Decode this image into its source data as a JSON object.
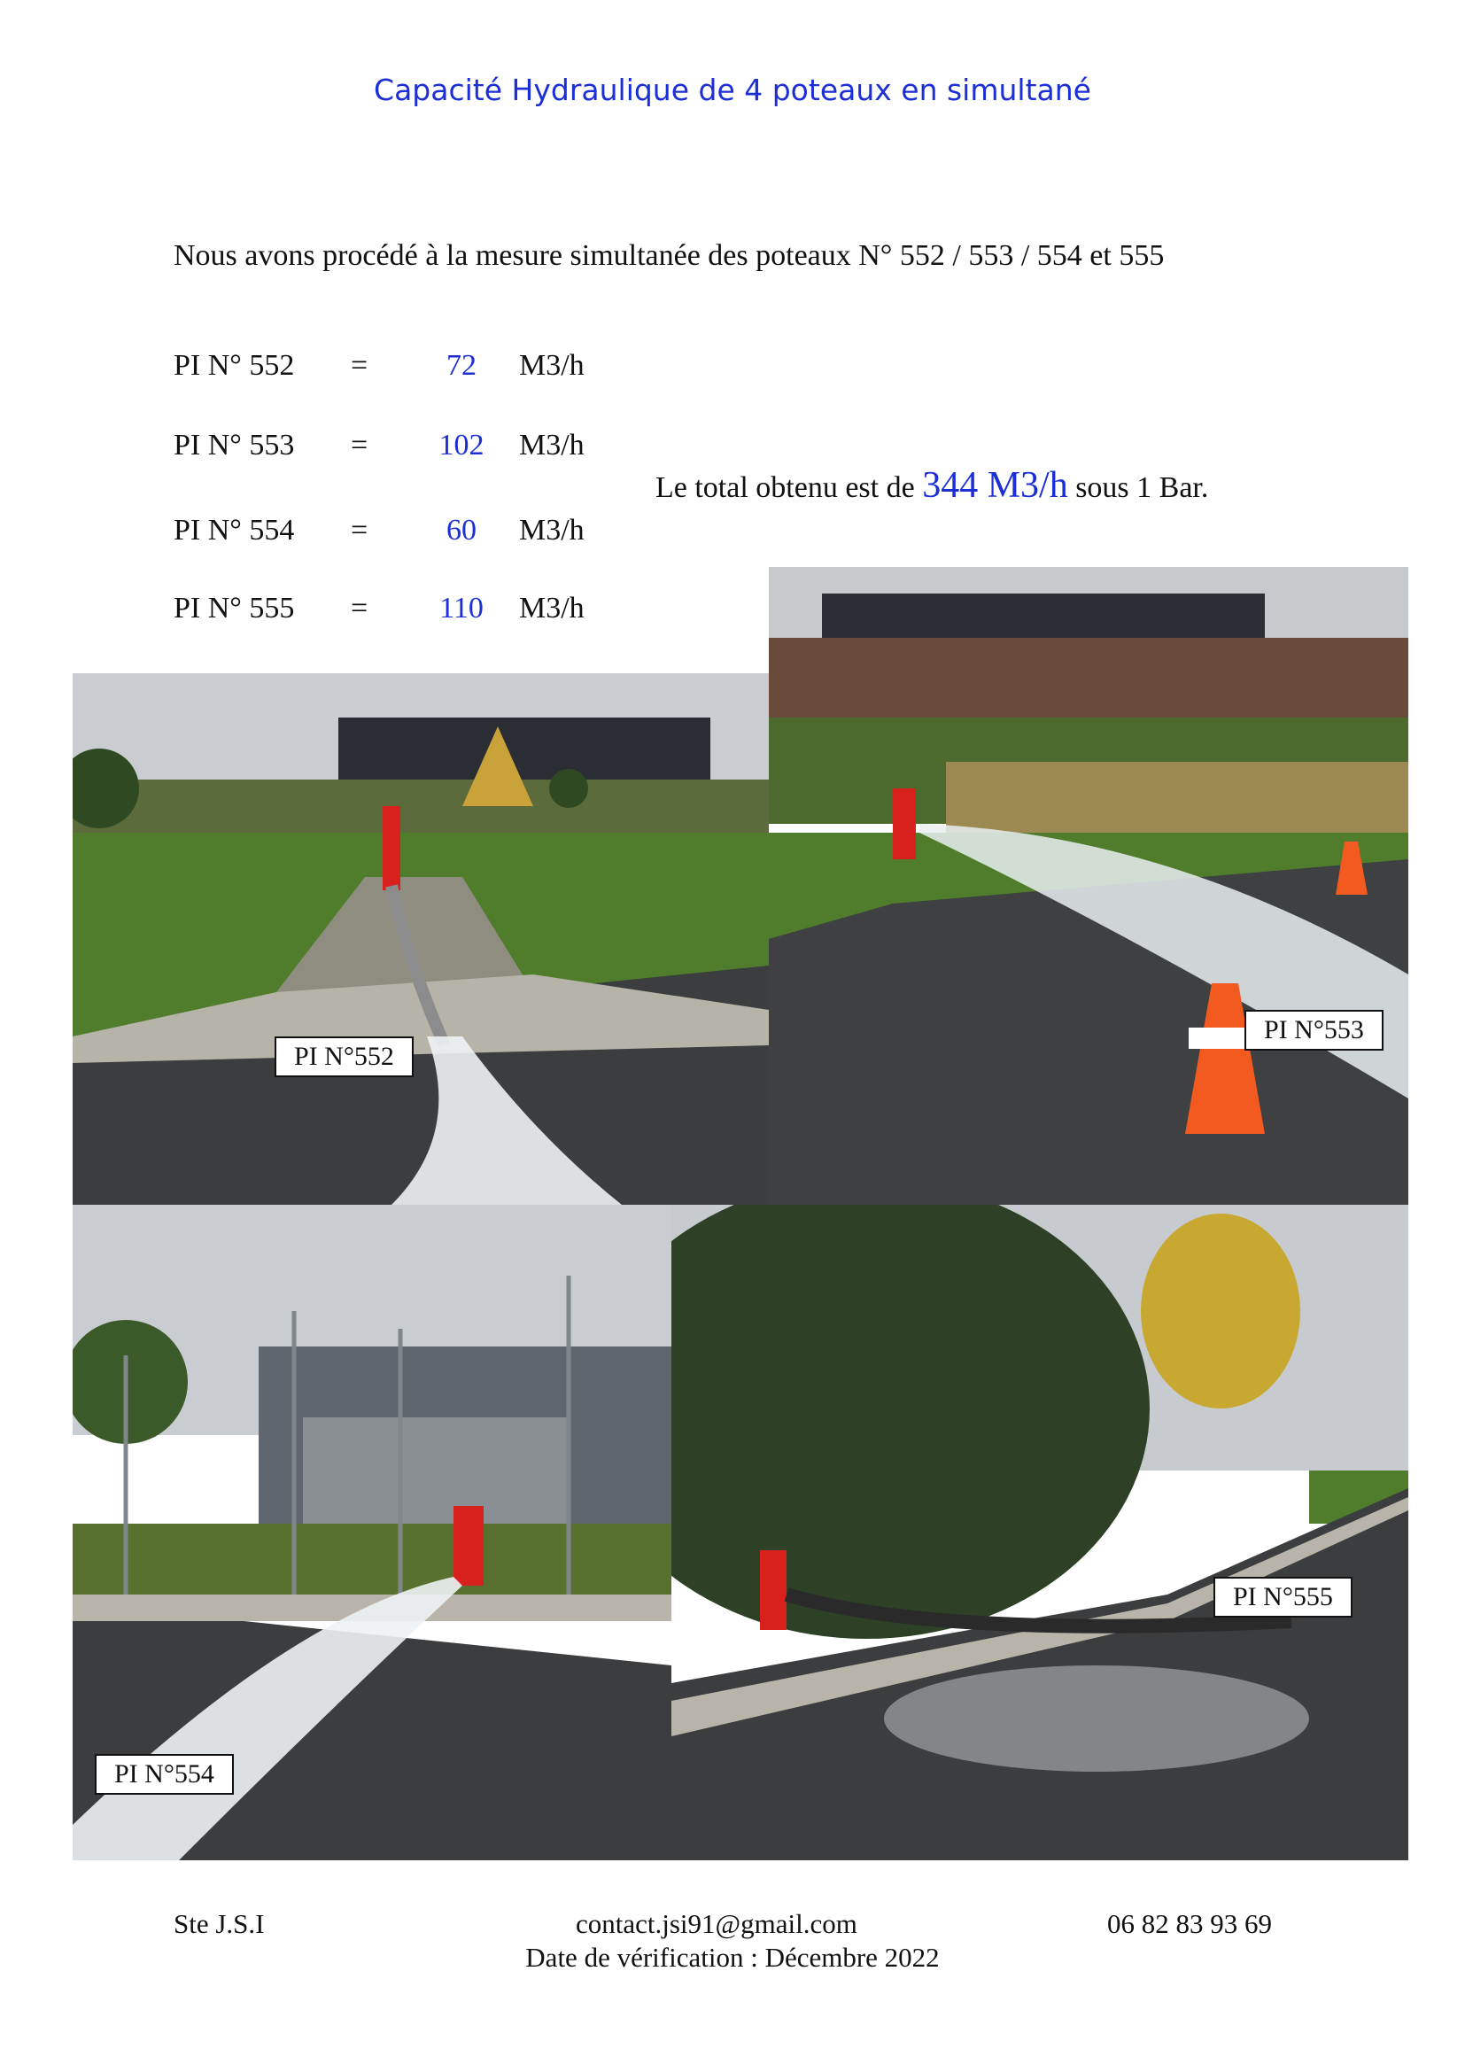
{
  "title": "Capacité Hydraulique de 4 poteaux en simultané",
  "intro": "Nous avons procédé à la mesure simultanée des poteaux N° 552 / 553 / 554 et 555",
  "measurements": [
    {
      "label": "PI N° 552",
      "eq": "=",
      "value": "72",
      "unit": "M3/h"
    },
    {
      "label": "PI N° 553",
      "eq": "=",
      "value": "102",
      "unit": "M3/h"
    },
    {
      "label": "PI N° 554",
      "eq": "=",
      "value": "60",
      "unit": "M3/h"
    },
    {
      "label": "PI N° 555",
      "eq": "=",
      "value": "110",
      "unit": "M3/h"
    }
  ],
  "total": {
    "prefix": "Le total obtenu est de",
    "value": "344 M3/h",
    "suffix": "sous 1 Bar."
  },
  "photos": [
    {
      "label": "PI N°552"
    },
    {
      "label": "PI N°553"
    },
    {
      "label": "PI N°554"
    },
    {
      "label": "PI N°555"
    }
  ],
  "footer": {
    "company": "Ste J.S.I",
    "email": "contact.jsi91@gmail.com",
    "phone": "06 82 83 93 69",
    "date": "Date de vérification : Décembre 2022"
  },
  "colors": {
    "accent": "#1c2fd6",
    "hydrant": "#d8201c",
    "grass": "#4f7d2c",
    "asphalt": "#3b3d3f"
  }
}
